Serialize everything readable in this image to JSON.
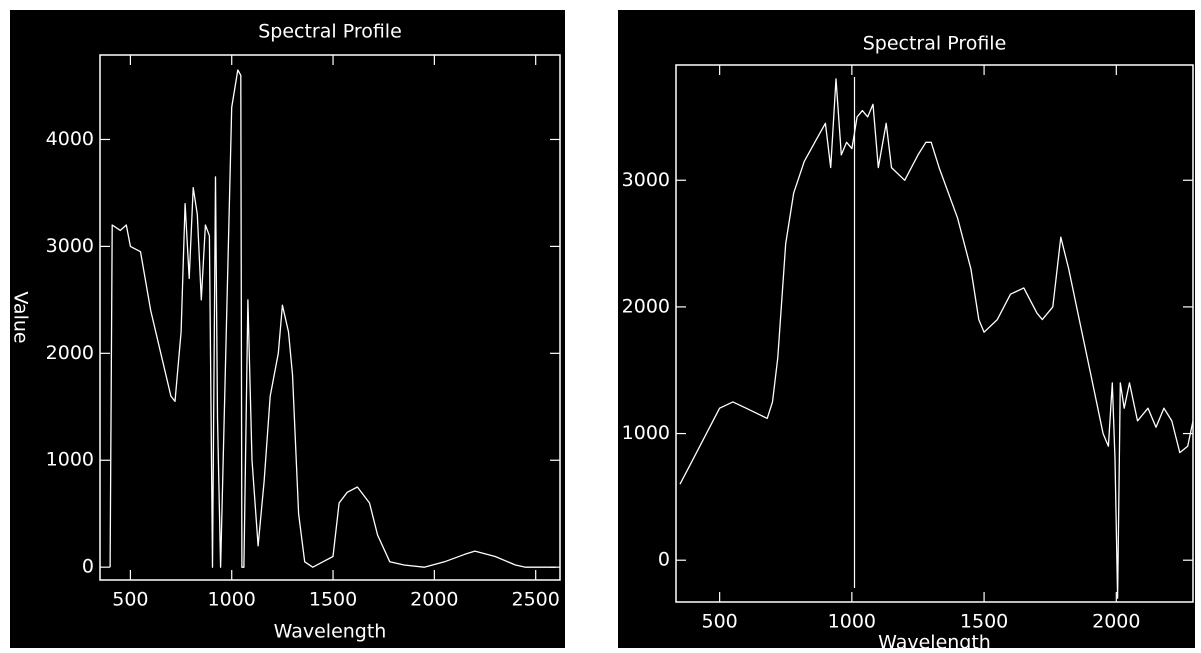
{
  "chart_data": [
    {
      "type": "line",
      "title": "Spectral Profile",
      "xlabel": "Wavelength",
      "ylabel": "Value",
      "color": "#ffffff",
      "xlim": [
        350,
        2620
      ],
      "ylim": [
        -120,
        4790
      ],
      "xticks": [
        500,
        1000,
        1500,
        2000,
        2500
      ],
      "yticks": [
        0,
        1000,
        2000,
        3000,
        4000
      ],
      "x": [
        400,
        410,
        450,
        480,
        500,
        550,
        600,
        650,
        700,
        720,
        750,
        770,
        790,
        810,
        830,
        850,
        870,
        890,
        905,
        920,
        930,
        945,
        1000,
        1030,
        1045,
        1050,
        1060,
        1080,
        1100,
        1130,
        1160,
        1190,
        1230,
        1250,
        1280,
        1300,
        1330,
        1360,
        1400,
        1450,
        1500,
        1530,
        1570,
        1620,
        1680,
        1720,
        1780,
        1850,
        1950,
        2050,
        2150,
        2200,
        2300,
        2400,
        2450,
        2600
      ],
      "values": [
        0,
        3200,
        3150,
        3200,
        3000,
        2950,
        2400,
        2000,
        1600,
        1550,
        2200,
        3400,
        2700,
        3550,
        3300,
        2500,
        3200,
        3100,
        0,
        3650,
        1400,
        0,
        4300,
        4650,
        4600,
        0,
        0,
        2500,
        1000,
        200,
        800,
        1600,
        2000,
        2450,
        2200,
        1800,
        500,
        50,
        0,
        50,
        100,
        600,
        700,
        750,
        600,
        300,
        50,
        20,
        0,
        50,
        120,
        150,
        100,
        20,
        0,
        0
      ]
    },
    {
      "type": "line",
      "title": "Spectral Profile",
      "xlabel": "Wavelength",
      "color": "#ffffff",
      "xlim": [
        335,
        2290
      ],
      "ylim": [
        -330,
        3910
      ],
      "xticks": [
        500,
        1000,
        1500,
        2000
      ],
      "yticks": [
        0,
        1000,
        2000,
        3000
      ],
      "cursor_x": 1010,
      "x": [
        350,
        400,
        450,
        500,
        550,
        600,
        650,
        680,
        700,
        720,
        750,
        780,
        820,
        860,
        900,
        920,
        940,
        960,
        980,
        1000,
        1020,
        1040,
        1060,
        1080,
        1100,
        1130,
        1150,
        1200,
        1250,
        1280,
        1300,
        1330,
        1400,
        1450,
        1480,
        1500,
        1550,
        1600,
        1650,
        1700,
        1720,
        1760,
        1790,
        1820,
        1850,
        1900,
        1950,
        1970,
        1985,
        1995,
        2005,
        2015,
        2030,
        2050,
        2080,
        2120,
        2150,
        2180,
        2210,
        2240,
        2270,
        2290
      ],
      "values": [
        600,
        800,
        1000,
        1200,
        1250,
        1200,
        1150,
        1120,
        1250,
        1600,
        2500,
        2900,
        3150,
        3300,
        3450,
        3100,
        3800,
        3200,
        3300,
        3250,
        3500,
        3550,
        3500,
        3600,
        3100,
        3450,
        3100,
        3000,
        3200,
        3300,
        3300,
        3100,
        2700,
        2300,
        1900,
        1800,
        1900,
        2100,
        2150,
        1950,
        1900,
        2000,
        2550,
        2300,
        2000,
        1500,
        1000,
        900,
        1400,
        800,
        -300,
        1400,
        1200,
        1400,
        1100,
        1200,
        1050,
        1200,
        1100,
        850,
        900,
        1100
      ]
    }
  ]
}
